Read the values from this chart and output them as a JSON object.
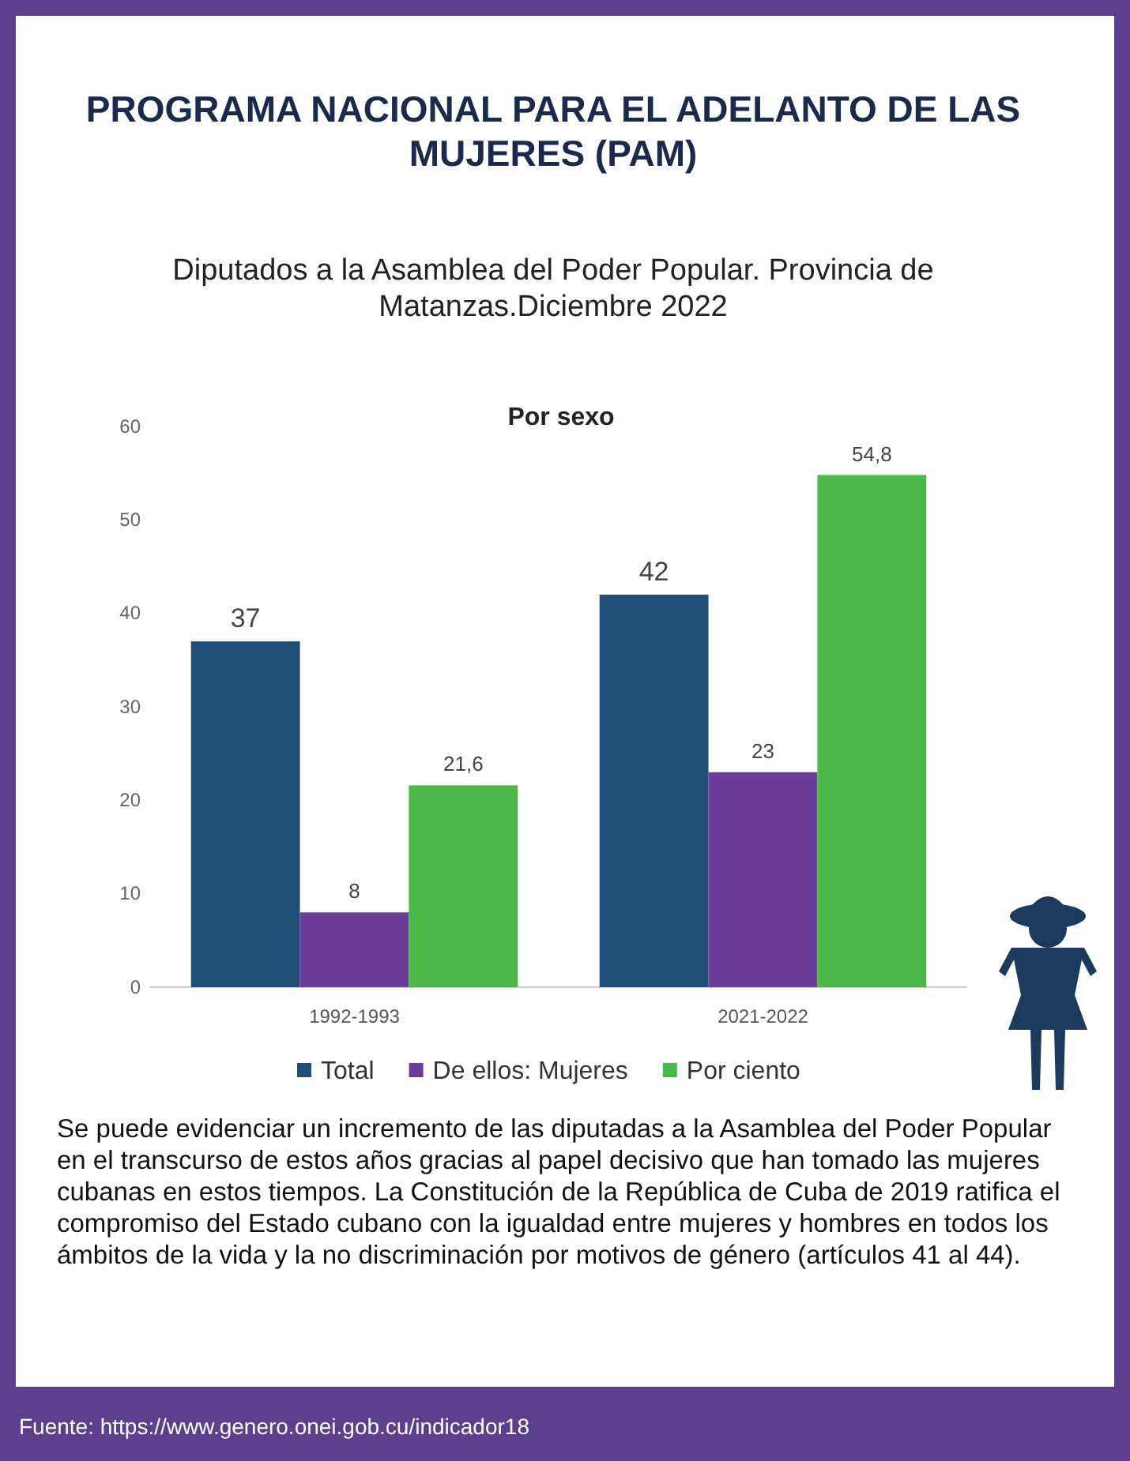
{
  "chart_data": {
    "type": "bar",
    "title": "PROGRAMA NACIONAL PARA EL ADELANTO DE LAS MUJERES (PAM)",
    "subtitle": "Diputados a la Asamblea del Poder Popular. Provincia de Matanzas.Diciembre 2022",
    "legend_title": "Por sexo",
    "categories": [
      "1992-1993",
      "2021-2022"
    ],
    "series": [
      {
        "name": "Total",
        "color": "#1f4e79",
        "values": [
          37,
          42
        ],
        "value_labels": [
          "37",
          "42"
        ]
      },
      {
        "name": "De ellos: Mujeres",
        "color": "#6a3d9a",
        "values": [
          8,
          23
        ],
        "value_labels": [
          "8",
          "23"
        ]
      },
      {
        "name": "Por ciento",
        "color": "#4cb848",
        "values": [
          21.6,
          54.8
        ],
        "value_labels": [
          "21,6",
          "54,8"
        ]
      }
    ],
    "ylim": [
      0,
      60
    ],
    "yticks": [
      0,
      10,
      20,
      30,
      40,
      50,
      60
    ],
    "grid": false,
    "legend": "bottom",
    "annotations": [
      "Se puede evidenciar un incremento de las diputadas a la Asamblea del Poder Popular en el transcurso de estos años gracias al papel decisivo que han tomado las mujeres cubanas en estos tiempos. La Constitución de la República de Cuba de 2019 ratifica el compromiso del Estado cubano con la igualdad entre mujeres y hombres en todos los ámbitos de la vida y la no discriminación por motivos de género (artículos 41 al 44).",
      "Fuente: https://www.genero.onei.gob.cu/indicador18"
    ]
  }
}
